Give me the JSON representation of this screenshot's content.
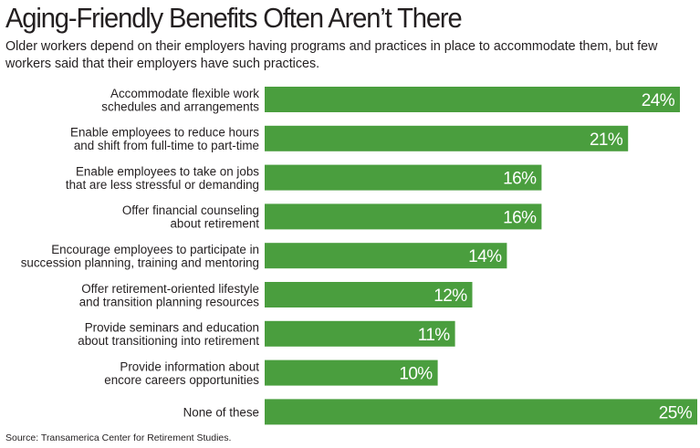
{
  "title": "Aging-Friendly Benefits Often Aren’t There",
  "subtitle": "Older workers depend on their employers having programs and practices in place to accommodate them, but few workers said that their employers have such practices.",
  "source": "Source: Transamerica Center for Retirement Studies.",
  "colors": {
    "bar": "#4a9e3e",
    "bar_label": "#ffffff",
    "text": "#231f20"
  },
  "chart_data": {
    "type": "bar",
    "orientation": "horizontal",
    "title": "Aging-Friendly Benefits Often Aren’t There",
    "xlabel": "",
    "ylabel": "",
    "xlim": [
      0,
      25
    ],
    "grid": false,
    "categories": [
      [
        "Accommodate flexible work",
        "schedules and arrangements"
      ],
      [
        "Enable employees to reduce hours",
        "and shift from full-time to part-time"
      ],
      [
        "Enable employees to take on jobs",
        "that are less stressful or demanding"
      ],
      [
        "Offer financial counseling",
        "about retirement"
      ],
      [
        "Encourage employees to participate in",
        "succession planning, training and mentoring"
      ],
      [
        "Offer retirement-oriented lifestyle",
        "and transition planning resources"
      ],
      [
        "Provide seminars and education",
        "about transitioning into retirement"
      ],
      [
        "Provide information about",
        "encore careers opportunities"
      ],
      [
        "None of these"
      ]
    ],
    "values": [
      24,
      21,
      16,
      16,
      14,
      12,
      11,
      10,
      25
    ],
    "value_labels": [
      "24%",
      "21%",
      "16%",
      "16%",
      "14%",
      "12%",
      "11%",
      "10%",
      "25%"
    ]
  }
}
